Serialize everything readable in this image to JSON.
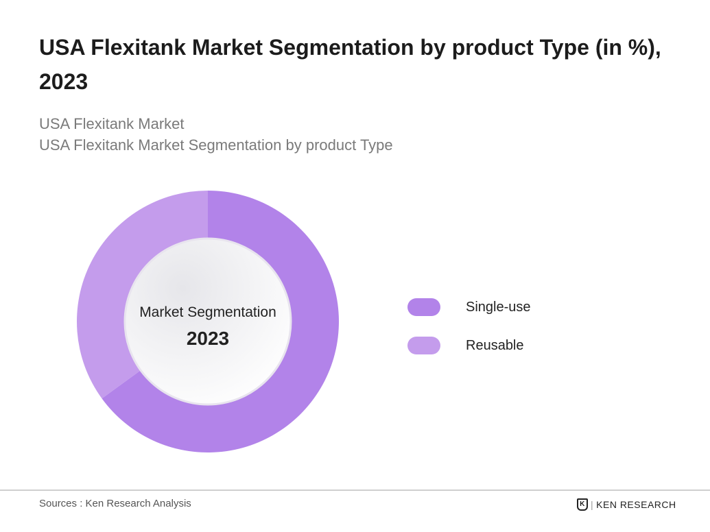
{
  "header": {
    "title": "USA Flexitank Market Segmentation by product Type (in %), 2023",
    "subtitle_1": "USA Flexitank Market",
    "subtitle_2": "USA Flexitank Market Segmentation by product Type"
  },
  "chart_data": {
    "type": "pie",
    "title": "USA Flexitank Market Segmentation by product Type (in %), 2023",
    "center_label": "Market Segmentation",
    "center_year": "2023",
    "categories": [
      "Single-use",
      "Reusable"
    ],
    "values": [
      65,
      35
    ],
    "colors": [
      "#b283e9",
      "#c49cec"
    ],
    "legend_position": "right"
  },
  "footer": {
    "source": "Sources : Ken Research Analysis",
    "logo_text": "KEN RESEARCH",
    "logo_mark": "K"
  }
}
